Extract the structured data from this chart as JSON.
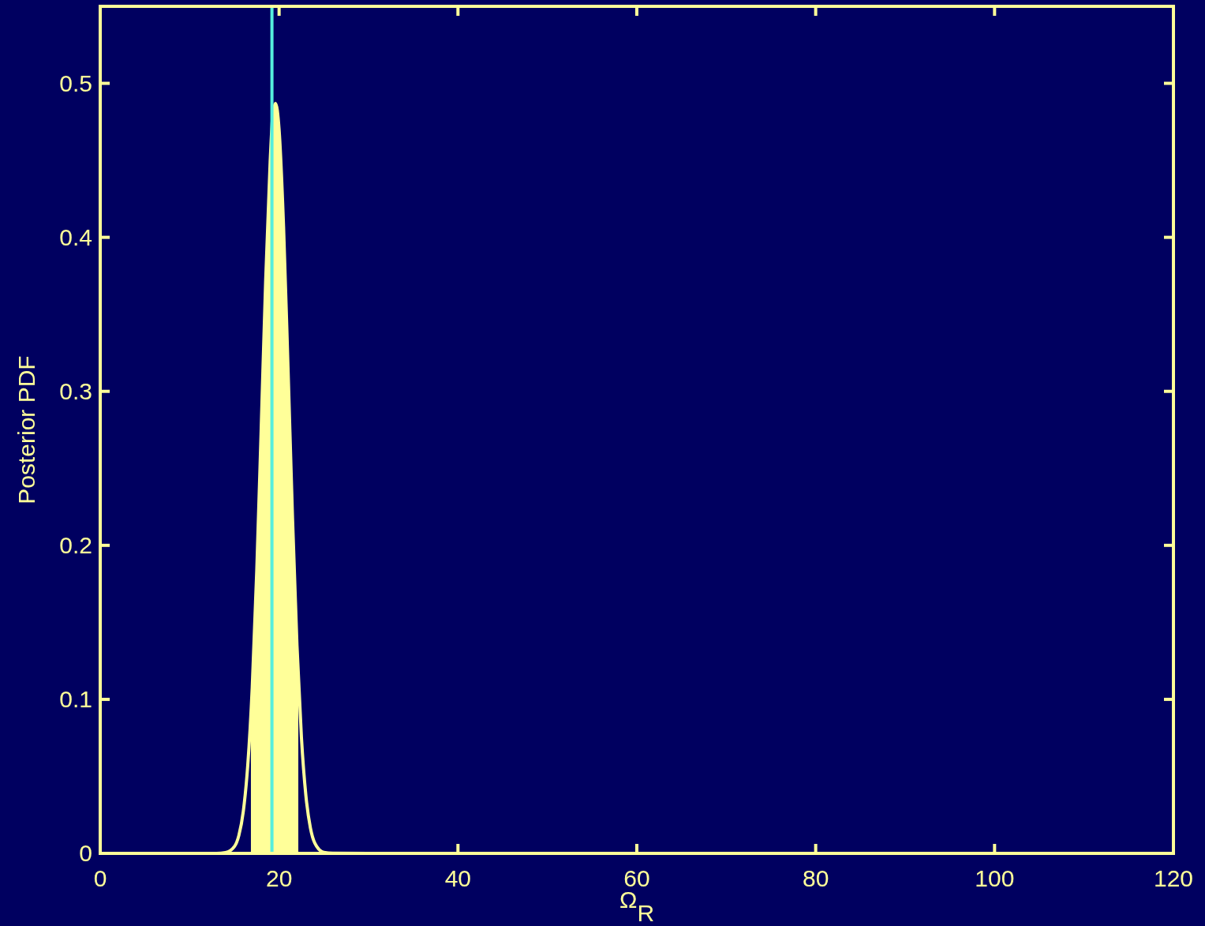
{
  "chart_data": {
    "type": "line",
    "xlabel": "Ω$_{R}$",
    "ylabel": "Posterior PDF",
    "xlim": [
      0,
      120
    ],
    "ylim": [
      0,
      0.55
    ],
    "xticks": [
      0,
      20,
      40,
      60,
      80,
      100,
      120
    ],
    "yticks": [
      0,
      0.1,
      0.2,
      0.3,
      0.4,
      0.5
    ],
    "grid": false,
    "series": [
      {
        "type": "area",
        "color": "#ffff99",
        "x": [
          16.85,
          17,
          17.5,
          18,
          18.5,
          19,
          19.3,
          19.6,
          20,
          20.5,
          21,
          21.5,
          22,
          22.15
        ],
        "values": [
          0.091,
          0.108,
          0.183,
          0.276,
          0.372,
          0.449,
          0.48,
          0.487,
          0.47,
          0.407,
          0.315,
          0.218,
          0.135,
          0.115
        ]
      },
      {
        "color": "#ffff99",
        "x": [
          0,
          10,
          13,
          14,
          15,
          15.5,
          16,
          16.5,
          17,
          17.5,
          18,
          18.5,
          19,
          19.3,
          19.6,
          20,
          20.5,
          21,
          21.5,
          22,
          22.5,
          23,
          23.5,
          24,
          25,
          26,
          30,
          60,
          120
        ],
        "values": [
          0,
          0,
          0,
          0.0005,
          0.0044,
          0.0116,
          0.0273,
          0.0575,
          0.108,
          0.183,
          0.276,
          0.372,
          0.449,
          0.48,
          0.487,
          0.47,
          0.407,
          0.315,
          0.218,
          0.135,
          0.075,
          0.0373,
          0.0166,
          0.0066,
          0.0007,
          0.0001,
          0,
          0,
          0
        ]
      }
    ],
    "ref_lines": [
      {
        "axis": "x",
        "value": 19.2,
        "color": "#55eedd"
      }
    ]
  }
}
